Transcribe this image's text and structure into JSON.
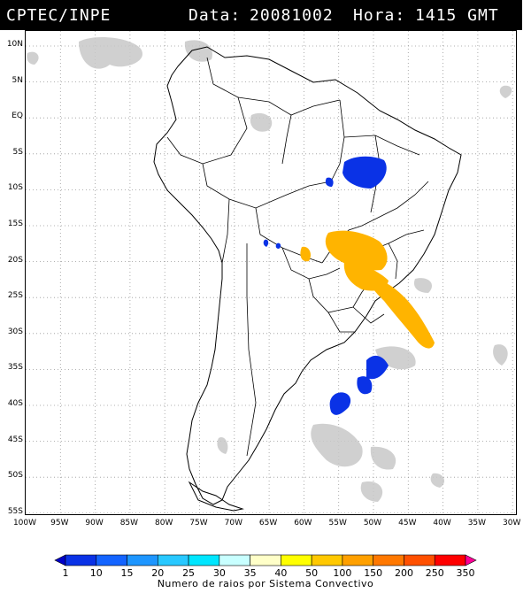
{
  "header": {
    "source": "CPTEC/INPE",
    "date_label": "Data:",
    "date_value": "20081002",
    "time_label": "Hora:",
    "time_value": "1415 GMT"
  },
  "lat_labels": [
    "10N",
    "5N",
    "EQ",
    "5S",
    "10S",
    "15S",
    "20S",
    "25S",
    "30S",
    "35S",
    "40S",
    "45S",
    "50S",
    "55S"
  ],
  "lon_labels": [
    "100W",
    "95W",
    "90W",
    "85W",
    "80W",
    "75W",
    "70W",
    "65W",
    "60W",
    "55W",
    "50W",
    "45W",
    "40W",
    "35W",
    "30W"
  ],
  "colorbar": {
    "labels": [
      "1",
      "10",
      "15",
      "20",
      "25",
      "30",
      "35",
      "40",
      "50",
      "100",
      "150",
      "200",
      "250",
      "350"
    ],
    "colors": [
      "#0000c8",
      "#0a32e6",
      "#1464ff",
      "#1e96ff",
      "#28c8ff",
      "#00e6ff",
      "#c8ffff",
      "#ffffc8",
      "#ffff00",
      "#ffc800",
      "#ffa000",
      "#ff7800",
      "#ff5000",
      "#ff0000",
      "#ff0096"
    ],
    "title": "Numero de raios por Sistema Convectivo"
  }
}
